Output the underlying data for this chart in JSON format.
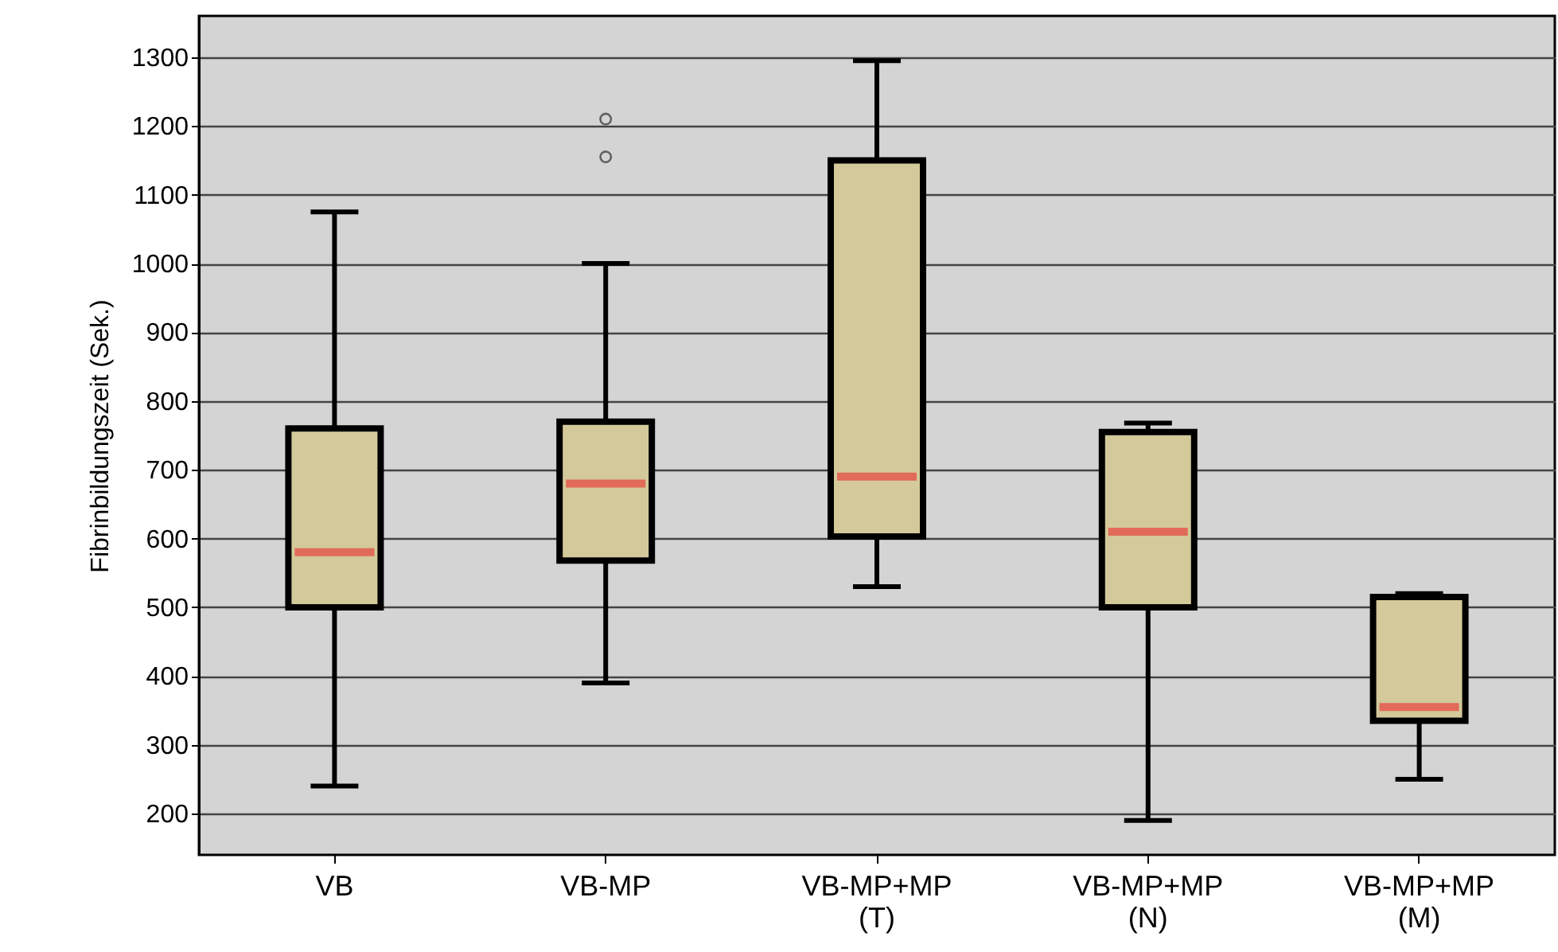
{
  "chart_data": {
    "type": "box",
    "ylabel": "Fibrinbildungszeit (Sek.)",
    "categories": [
      "VB",
      "VB-MP",
      "VB-MP+MP (T)",
      "VB-MP+MP (N)",
      "VB-MP+MP (M)"
    ],
    "series": [
      {
        "color": "#d3c99a",
        "boxes": [
          {
            "low": 240,
            "q1": 500,
            "median": 580,
            "q3": 760,
            "high": 1075
          },
          {
            "low": 390,
            "q1": 568,
            "median": 680,
            "q3": 770,
            "high": 1000,
            "outliers": [
              1155,
              1210
            ]
          },
          {
            "low": 530,
            "q1": 603,
            "median": 690,
            "q3": 1150,
            "high": 1295
          },
          {
            "low": 190,
            "q1": 500,
            "median": 610,
            "q3": 755,
            "high": 768
          },
          {
            "low": 250,
            "q1": 335,
            "median": 355,
            "q3": 515,
            "high": 520
          }
        ]
      }
    ],
    "ylim": [
      140,
      1360
    ],
    "yticks": [
      200,
      300,
      400,
      500,
      600,
      700,
      800,
      900,
      1000,
      1100,
      1200,
      1300
    ],
    "grid": "y"
  }
}
